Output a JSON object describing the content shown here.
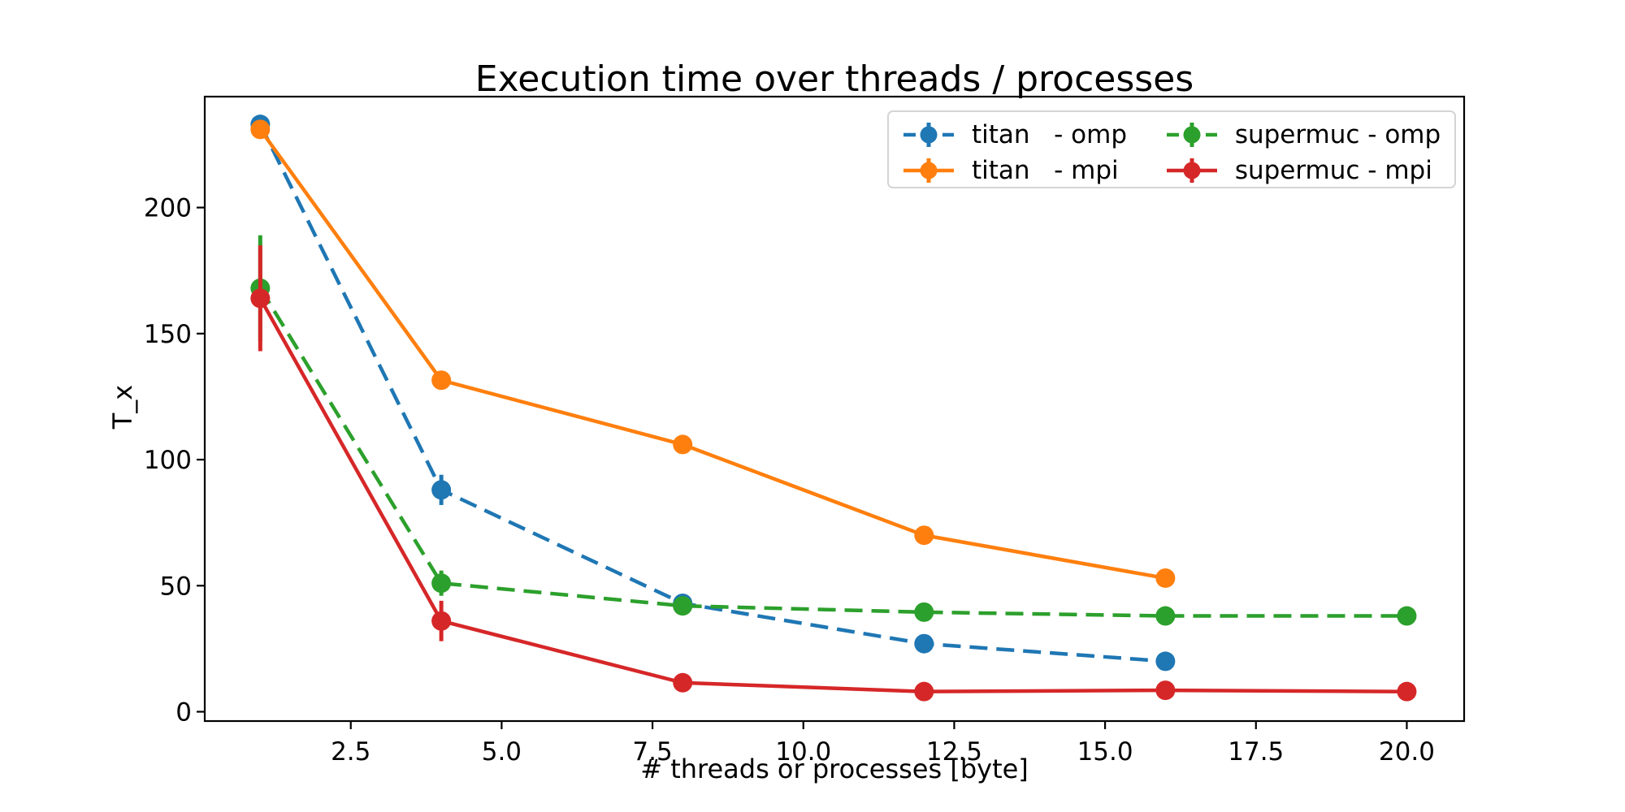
{
  "title": "Execution time over threads / processes",
  "chart_data": {
    "type": "line",
    "title": "Execution time over threads / processes",
    "xlabel": "# threads or processes [byte]",
    "ylabel": "T_x",
    "xlim": [
      0.08,
      20.95
    ],
    "ylim": [
      -3.7,
      244
    ],
    "xticks": [
      2.5,
      5.0,
      7.5,
      10.0,
      12.5,
      15.0,
      17.5,
      20.0
    ],
    "xtick_labels": [
      "2.5",
      "5.0",
      "7.5",
      "10.0",
      "12.5",
      "15.0",
      "17.5",
      "20.0"
    ],
    "yticks": [
      0,
      50,
      100,
      150,
      200
    ],
    "ytick_labels": [
      "0",
      "50",
      "100",
      "150",
      "200"
    ],
    "grid": false,
    "legend_position": "upper-right",
    "legend_columns": 2,
    "series": [
      {
        "name": "titan-omp",
        "label": "titan   - omp",
        "color": "#1f77b4",
        "linestyle": "dashed",
        "marker": "circle",
        "x": [
          1,
          4,
          8,
          12,
          16
        ],
        "y": [
          233,
          88,
          43,
          27,
          20
        ],
        "yerr": [
          0,
          6,
          0,
          0,
          0
        ]
      },
      {
        "name": "titan-mpi",
        "label": "titan   - mpi",
        "color": "#ff7f0e",
        "linestyle": "solid",
        "marker": "circle",
        "x": [
          1,
          4,
          8,
          12,
          16
        ],
        "y": [
          231,
          131.5,
          106,
          70,
          53
        ],
        "yerr": [
          0,
          0,
          0,
          0,
          0
        ]
      },
      {
        "name": "supermuc-omp",
        "label": "supermuc - omp",
        "color": "#2ca02c",
        "linestyle": "dashed",
        "marker": "circle",
        "x": [
          1,
          4,
          8,
          12,
          16,
          20
        ],
        "y": [
          168,
          51,
          42,
          39.5,
          38,
          38
        ],
        "yerr": [
          21,
          5,
          0,
          0,
          0,
          0
        ]
      },
      {
        "name": "supermuc-mpi",
        "label": "supermuc - mpi",
        "color": "#d62728",
        "linestyle": "solid",
        "marker": "circle",
        "x": [
          1,
          4,
          8,
          12,
          16,
          20
        ],
        "y": [
          164,
          36,
          11.5,
          8,
          8.5,
          8
        ],
        "yerr": [
          21,
          8,
          0,
          0,
          0,
          0
        ]
      }
    ]
  }
}
